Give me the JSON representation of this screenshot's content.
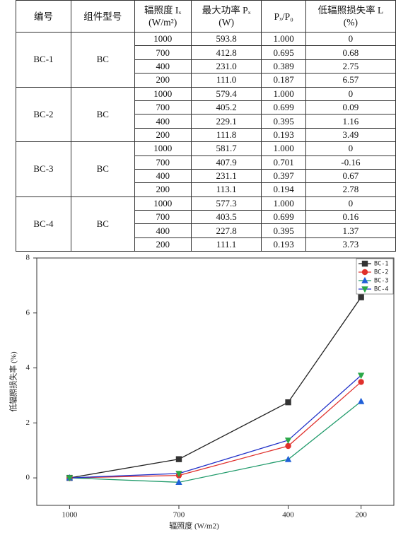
{
  "table": {
    "header": [
      [
        "编号"
      ],
      [
        "组件型号"
      ],
      [
        "辐照度 Iₓ",
        "(W/m²)"
      ],
      [
        "最大功率 Pₓ",
        "(W)"
      ],
      [
        "Pₓ/P₀"
      ],
      [
        "低辐照损失率 L",
        "(%)"
      ]
    ],
    "groups": [
      {
        "id": "BC-1",
        "model": "BC",
        "rows": [
          [
            "1000",
            "593.8",
            "1.000",
            "0"
          ],
          [
            "700",
            "412.8",
            "0.695",
            "0.68"
          ],
          [
            "400",
            "231.0",
            "0.389",
            "2.75"
          ],
          [
            "200",
            "111.0",
            "0.187",
            "6.57"
          ]
        ]
      },
      {
        "id": "BC-2",
        "model": "BC",
        "rows": [
          [
            "1000",
            "579.4",
            "1.000",
            "0"
          ],
          [
            "700",
            "405.2",
            "0.699",
            "0.09"
          ],
          [
            "400",
            "229.1",
            "0.395",
            "1.16"
          ],
          [
            "200",
            "111.8",
            "0.193",
            "3.49"
          ]
        ]
      },
      {
        "id": "BC-3",
        "model": "BC",
        "rows": [
          [
            "1000",
            "581.7",
            "1.000",
            "0"
          ],
          [
            "700",
            "407.9",
            "0.701",
            "-0.16"
          ],
          [
            "400",
            "231.1",
            "0.397",
            "0.67"
          ],
          [
            "200",
            "113.1",
            "0.194",
            "2.78"
          ]
        ]
      },
      {
        "id": "BC-4",
        "model": "BC",
        "rows": [
          [
            "1000",
            "577.3",
            "1.000",
            "0"
          ],
          [
            "700",
            "403.5",
            "0.699",
            "0.16"
          ],
          [
            "400",
            "227.8",
            "0.395",
            "1.37"
          ],
          [
            "200",
            "111.1",
            "0.193",
            "3.73"
          ]
        ]
      }
    ]
  },
  "chart_data": {
    "type": "line",
    "x_label": "辐照度 (W/m2)",
    "y_label": "低辐照损失率 (%)",
    "x": [
      1000,
      700,
      400,
      200
    ],
    "series": [
      {
        "name": "BC-1",
        "color": "#333333",
        "line_color": "#222222",
        "marker": "square",
        "values": [
          0,
          0.68,
          2.75,
          6.57
        ]
      },
      {
        "name": "BC-2",
        "color": "#e0302c",
        "line_color": "#e0302c",
        "marker": "circle",
        "values": [
          0,
          0.09,
          1.16,
          3.49
        ]
      },
      {
        "name": "BC-3",
        "color": "#2060d8",
        "line_color": "#1f9a6a",
        "marker": "triangle",
        "values": [
          0,
          -0.16,
          0.67,
          2.78
        ]
      },
      {
        "name": "BC-4",
        "color": "#2aa848",
        "line_color": "#2030c8",
        "marker": "triangle-down",
        "values": [
          0,
          0.16,
          1.37,
          3.73
        ]
      }
    ],
    "xlim": [
      1090,
      110
    ],
    "xticks": [
      1000,
      700,
      400,
      200
    ],
    "ylim": [
      -1,
      8
    ],
    "yticks": [
      0,
      2,
      4,
      6,
      8
    ],
    "legend": "upper-right"
  }
}
